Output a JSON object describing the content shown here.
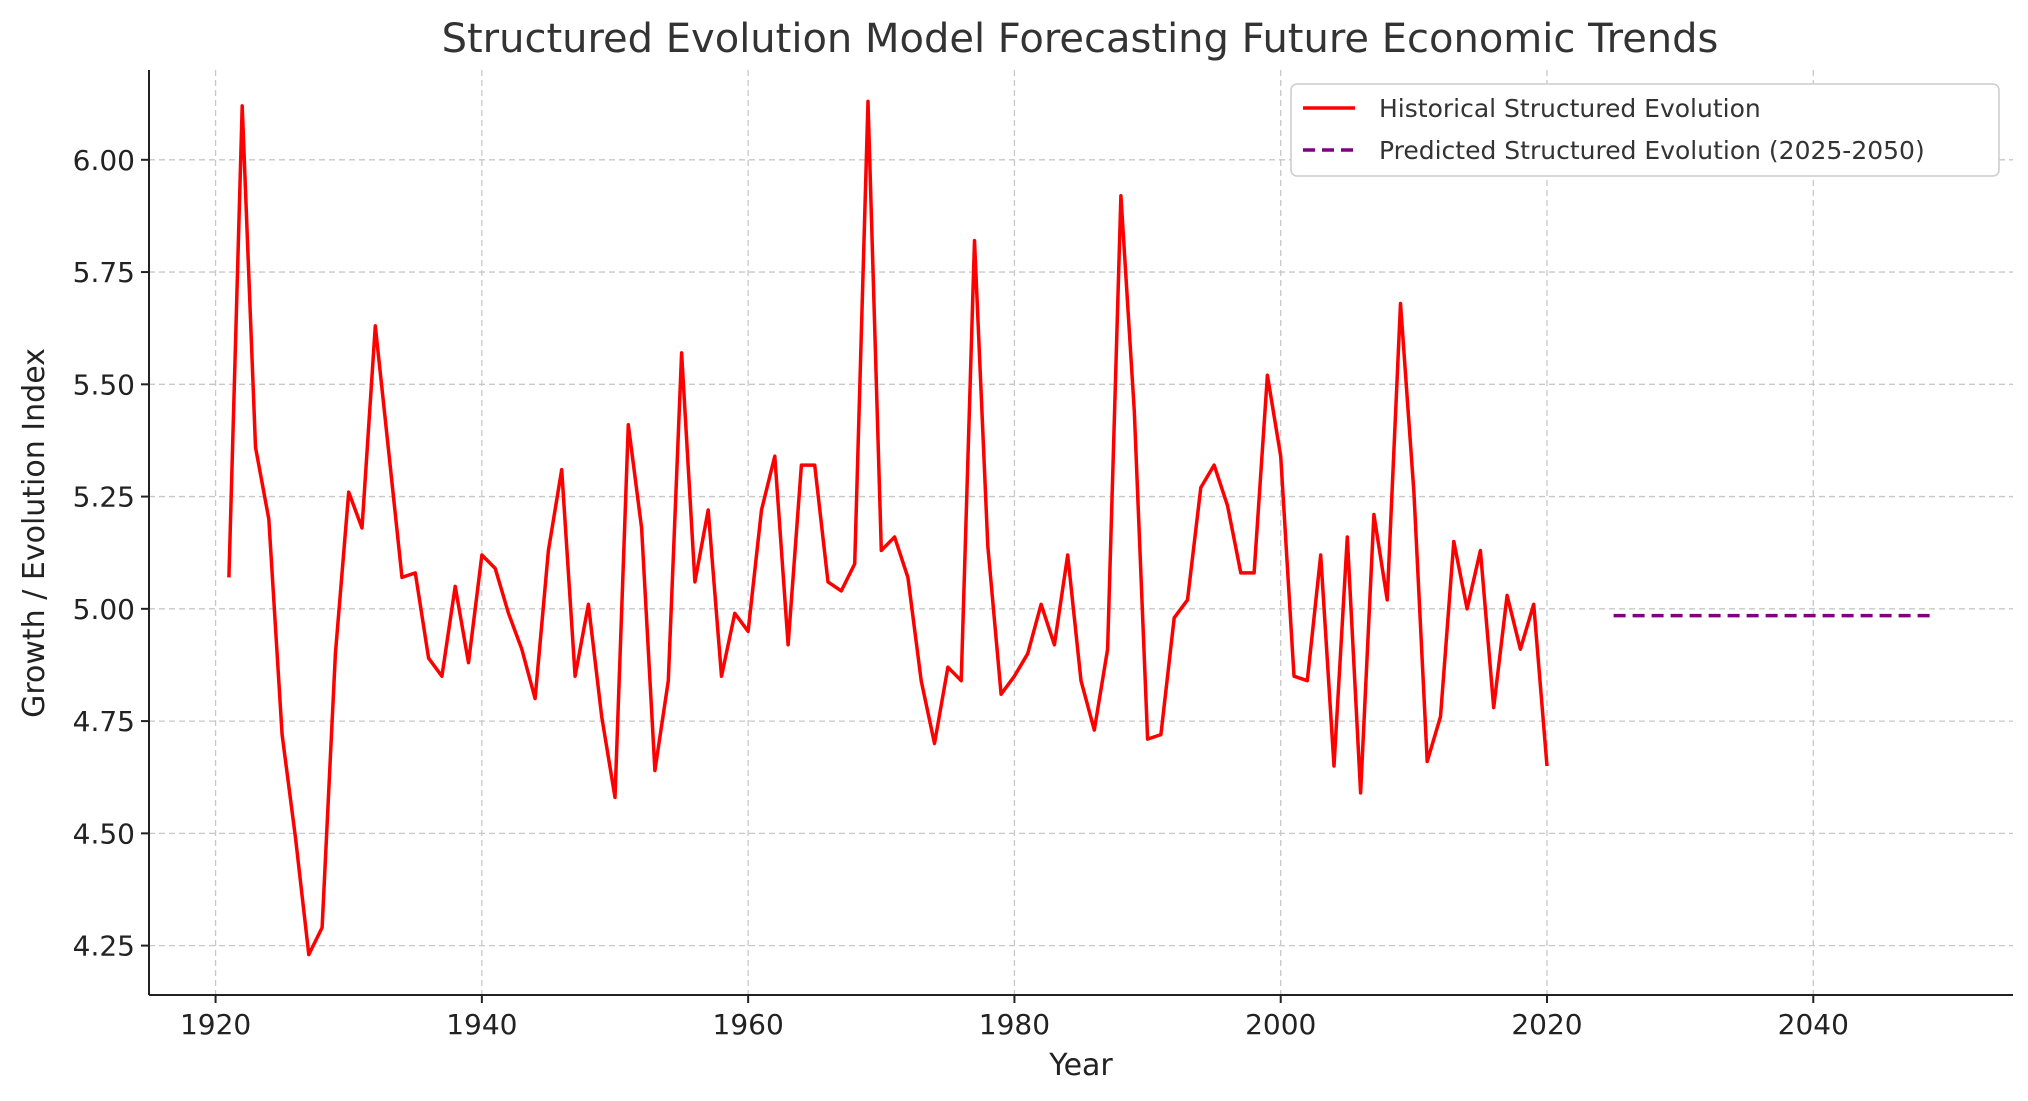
{
  "chart_data": {
    "type": "line",
    "title": "Structured Evolution Model Forecasting Future Economic Trends",
    "xlabel": "Year",
    "ylabel": "Growth / Evolution Index",
    "xlim": [
      1915,
      2055
    ],
    "ylim": [
      4.14,
      6.2
    ],
    "x_ticks": [
      1920,
      1940,
      1960,
      1980,
      2000,
      2020,
      2040
    ],
    "y_ticks": [
      4.25,
      4.5,
      4.75,
      5.0,
      5.25,
      5.5,
      5.75,
      6.0
    ],
    "y_tick_labels": [
      "4.25",
      "4.50",
      "4.75",
      "5.00",
      "5.25",
      "5.50",
      "5.75",
      "6.00"
    ],
    "x_tick_labels": [
      "1920",
      "1940",
      "1960",
      "1980",
      "2000",
      "2020",
      "2040"
    ],
    "grid": true,
    "legend_position": "top-right",
    "colors": {
      "historical": "#ff0000",
      "predicted": "#800080"
    },
    "series": [
      {
        "name": "Historical Structured Evolution",
        "style": "solid",
        "x": [
          1921,
          1922,
          1923,
          1924,
          1925,
          1926,
          1927,
          1928,
          1929,
          1930,
          1931,
          1932,
          1933,
          1934,
          1935,
          1936,
          1937,
          1938,
          1939,
          1940,
          1941,
          1942,
          1943,
          1944,
          1945,
          1946,
          1947,
          1948,
          1949,
          1950,
          1951,
          1952,
          1953,
          1954,
          1955,
          1956,
          1957,
          1958,
          1959,
          1960,
          1961,
          1962,
          1963,
          1964,
          1965,
          1966,
          1967,
          1968,
          1969,
          1970,
          1971,
          1972,
          1973,
          1974,
          1975,
          1976,
          1977,
          1978,
          1979,
          1980,
          1981,
          1982,
          1983,
          1984,
          1985,
          1986,
          1987,
          1988,
          1989,
          1990,
          1991,
          1992,
          1993,
          1994,
          1995,
          1996,
          1997,
          1998,
          1999,
          2000,
          2001,
          2002,
          2003,
          2004,
          2005,
          2006,
          2007,
          2008,
          2009,
          2010,
          2011,
          2012,
          2013,
          2014,
          2015,
          2016,
          2017,
          2018,
          2019,
          2020
        ],
        "y": [
          5.07,
          6.12,
          5.36,
          5.2,
          4.72,
          4.49,
          4.23,
          4.29,
          4.9,
          5.26,
          5.18,
          5.63,
          5.35,
          5.07,
          5.08,
          4.89,
          4.85,
          5.05,
          4.88,
          5.12,
          5.09,
          4.99,
          4.91,
          4.8,
          5.13,
          5.31,
          4.85,
          5.01,
          4.76,
          4.58,
          5.41,
          5.18,
          4.64,
          4.84,
          5.57,
          5.06,
          5.22,
          4.85,
          4.99,
          4.95,
          5.22,
          5.34,
          4.92,
          5.32,
          5.32,
          5.06,
          5.04,
          5.1,
          6.13,
          5.13,
          5.16,
          5.07,
          4.84,
          4.7,
          4.87,
          4.84,
          5.82,
          5.14,
          4.81,
          4.85,
          4.9,
          5.01,
          4.92,
          5.12,
          4.84,
          4.73,
          4.91,
          5.92,
          5.44,
          4.71,
          4.72,
          4.98,
          5.02,
          5.27,
          5.32,
          5.23,
          5.08,
          5.08,
          5.52,
          5.34,
          4.85,
          4.84,
          5.12,
          4.65,
          5.16,
          4.59,
          5.21,
          5.02,
          5.68,
          5.26,
          4.66,
          4.76,
          5.15,
          5.0,
          5.13,
          4.78,
          5.03,
          4.91,
          5.01,
          4.65
        ]
      },
      {
        "name": "Predicted Structured Evolution (2025-2050)",
        "style": "dashed",
        "x": [
          2025,
          2026,
          2027,
          2028,
          2029,
          2030,
          2031,
          2032,
          2033,
          2034,
          2035,
          2036,
          2037,
          2038,
          2039,
          2040,
          2041,
          2042,
          2043,
          2044,
          2045,
          2046,
          2047,
          2048,
          2049
        ],
        "y": [
          4.985,
          4.985,
          4.985,
          4.985,
          4.985,
          4.985,
          4.985,
          4.985,
          4.985,
          4.985,
          4.985,
          4.985,
          4.985,
          4.985,
          4.985,
          4.985,
          4.985,
          4.985,
          4.985,
          4.985,
          4.985,
          4.985,
          4.985,
          4.985,
          4.985
        ]
      }
    ]
  }
}
